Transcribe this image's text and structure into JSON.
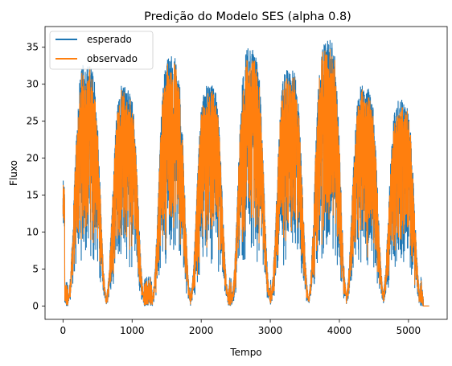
{
  "chart_data": {
    "type": "line",
    "title": "Predição do Modelo SES (alpha 0.8)",
    "xlabel": "Tempo",
    "ylabel": "Fluxo",
    "xlim": [
      -260,
      5560
    ],
    "ylim": [
      -1.8,
      37.8
    ],
    "xticks": [
      0,
      1000,
      2000,
      3000,
      4000,
      5000
    ],
    "yticks": [
      0,
      5,
      10,
      15,
      20,
      25,
      30,
      35
    ],
    "grid": false,
    "legend_position": "top-left",
    "series": [
      {
        "name": "esperado",
        "color": "#1f77b4",
        "x_range": [
          0,
          5300
        ]
      },
      {
        "name": "observado",
        "color": "#ff7f0e",
        "x_range": [
          0,
          5300
        ]
      }
    ],
    "cycles": [
      {
        "center": 350,
        "peak_expected": 33,
        "peak_observed": 30
      },
      {
        "center": 900,
        "peak_expected": 30,
        "peak_observed": 29
      },
      {
        "center": 1570,
        "peak_expected": 34,
        "peak_observed": 33
      },
      {
        "center": 2120,
        "peak_expected": 30,
        "peak_observed": 29
      },
      {
        "center": 2720,
        "peak_expected": 35,
        "peak_observed": 33
      },
      {
        "center": 3280,
        "peak_expected": 32,
        "peak_observed": 30
      },
      {
        "center": 3830,
        "peak_expected": 36,
        "peak_observed": 34
      },
      {
        "center": 4370,
        "peak_expected": 30,
        "peak_observed": 29
      },
      {
        "center": 4900,
        "peak_expected": 28,
        "peak_observed": 27
      }
    ]
  }
}
